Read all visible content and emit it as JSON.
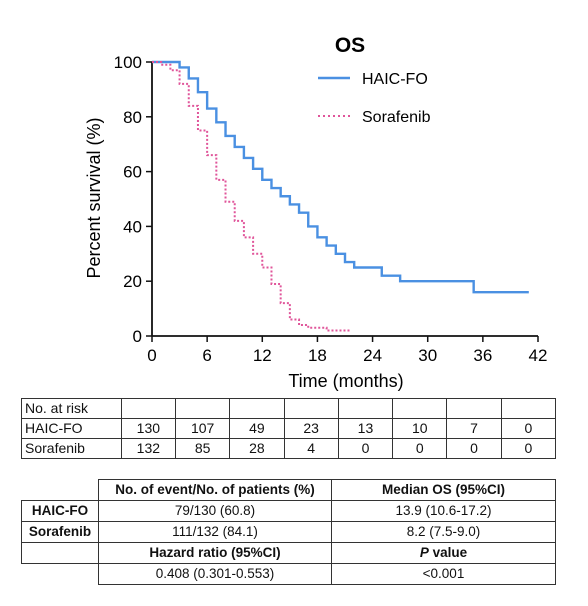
{
  "chart_data": {
    "type": "line",
    "title": "OS",
    "xlabel": "Time (months)",
    "ylabel": "Percent survival (%)",
    "xlim": [
      0,
      42
    ],
    "ylim": [
      0,
      100
    ],
    "xticks": [
      "0",
      "6",
      "12",
      "18",
      "24",
      "30",
      "36",
      "42"
    ],
    "yticks": [
      "0",
      "20",
      "40",
      "60",
      "80",
      "100"
    ],
    "legend_position": "top-right",
    "series": [
      {
        "name": "HAIC-FO",
        "color": "#4a90e2",
        "style": "solid",
        "x": [
          0,
          2,
          3,
          4,
          5,
          6,
          7,
          8,
          9,
          10,
          11,
          12,
          13,
          14,
          15,
          16,
          17,
          18,
          19,
          20,
          21,
          22,
          24,
          25,
          27,
          30,
          33,
          35,
          41
        ],
        "y": [
          100,
          100,
          98,
          94,
          89,
          83,
          78,
          73,
          69,
          65,
          61,
          57,
          54,
          51,
          48,
          45,
          40,
          36,
          33,
          30,
          27,
          25,
          25,
          22,
          20,
          20,
          20,
          16,
          16
        ]
      },
      {
        "name": "Sorafenib",
        "color": "#e0559a",
        "style": "dashed",
        "x": [
          0,
          1,
          2,
          3,
          4,
          5,
          6,
          7,
          8,
          9,
          10,
          11,
          12,
          13,
          14,
          15,
          16,
          17,
          18,
          19,
          20,
          21.5
        ],
        "y": [
          100,
          99,
          97,
          92,
          84,
          75,
          66,
          57,
          49,
          42,
          36,
          30,
          25,
          19,
          12,
          6,
          4,
          3,
          3,
          2,
          2,
          2
        ]
      }
    ]
  },
  "risk_table": {
    "header": "No. at risk",
    "rows": [
      {
        "label": "HAIC-FO",
        "values": [
          "130",
          "107",
          "49",
          "23",
          "13",
          "10",
          "7",
          "0"
        ]
      },
      {
        "label": "Sorafenib",
        "values": [
          "132",
          "85",
          "28",
          "4",
          "0",
          "0",
          "0",
          "0"
        ]
      }
    ]
  },
  "summary_table": {
    "col1_header": "No. of event/No. of patients (%)",
    "col2_header": "Median OS (95%CI)",
    "rows": [
      {
        "label": "HAIC-FO",
        "c1": "79/130 (60.8)",
        "c2": "13.9 (10.6-17.2)"
      },
      {
        "label": "Sorafenib",
        "c1": "111/132 (84.1)",
        "c2": "8.2 (7.5-9.0)"
      }
    ],
    "hr_header": "Hazard ratio (95%CI)",
    "p_header_italic": "P",
    "p_header_rest": " value",
    "hr_value": "0.408 (0.301-0.553)",
    "p_value": "<0.001"
  }
}
